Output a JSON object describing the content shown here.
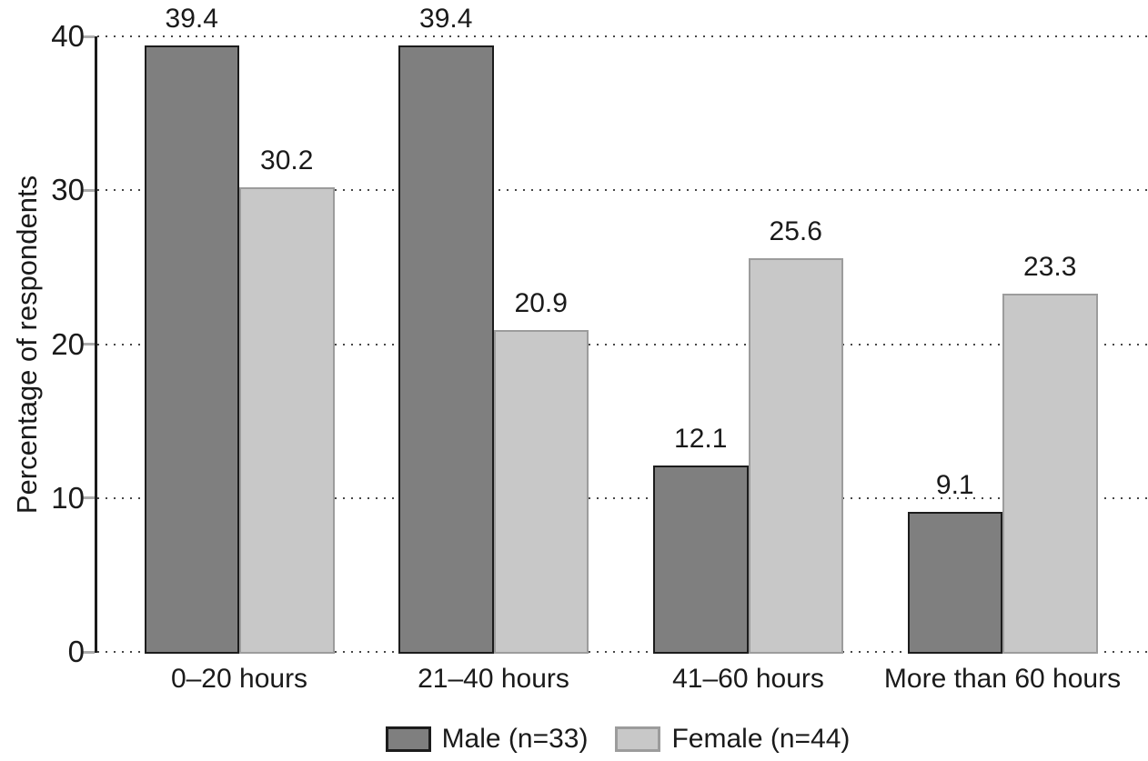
{
  "chart_data": {
    "type": "bar",
    "title": "",
    "categories": [
      "0–20 hours",
      "21–40 hours",
      "41–60 hours",
      "More than 60 hours"
    ],
    "series": [
      {
        "name": "Male (n=33)",
        "values": [
          39.4,
          39.4,
          12.1,
          9.1
        ],
        "fill": "#7f7f7f",
        "border": "#1c1c1c"
      },
      {
        "name": "Female (n=44)",
        "values": [
          30.2,
          20.9,
          25.6,
          23.3
        ],
        "fill": "#c8c8c8",
        "border": "#9c9c9c"
      }
    ],
    "xlabel": "",
    "ylabel": "Percentage of respondents",
    "yticks": [
      0,
      10,
      20,
      30,
      40
    ],
    "ylim": [
      0,
      40
    ],
    "grid": "horizontal-dotted",
    "legend_position": "bottom-center",
    "value_labels": true,
    "colors": {
      "text": "#1a1a1a",
      "axis": "#1a1a1a",
      "grid_dots": "#474747",
      "tick_marks": "#ababab"
    }
  }
}
